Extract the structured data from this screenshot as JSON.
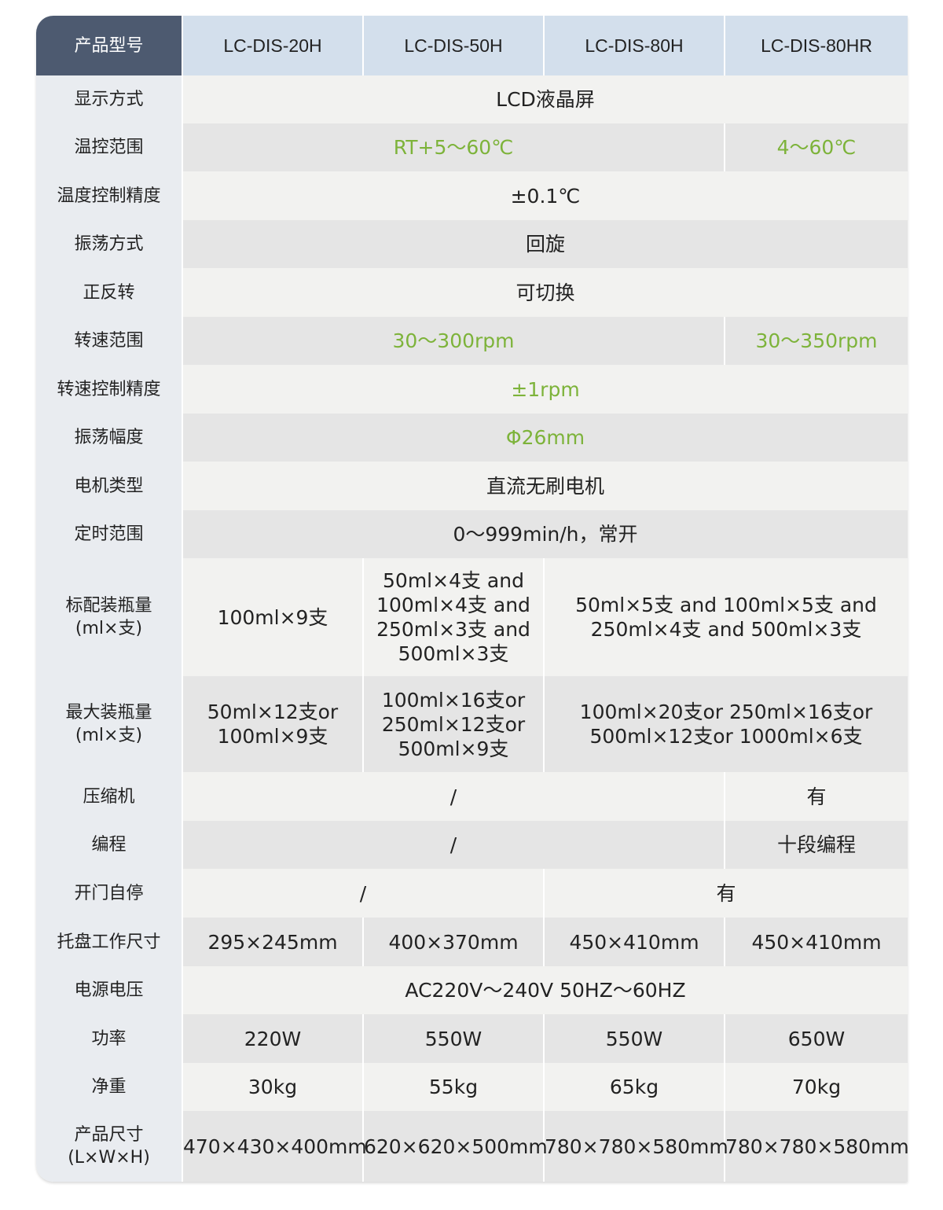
{
  "colors": {
    "header_label_bg": "#4d5a70",
    "header_bg": "#d3dfec",
    "label_bg": "#e9ecf0",
    "row_light": "#f2f2f0",
    "row_dark": "#e5e5e5",
    "highlight_green": "#7db33a"
  },
  "header": {
    "label": "产品型号",
    "models": [
      "LC-DIS-20H",
      "LC-DIS-50H",
      "LC-DIS-80H",
      "LC-DIS-80HR"
    ]
  },
  "rows": [
    {
      "label": "显示方式",
      "cells": [
        {
          "text": "LCD液晶屏",
          "span": 4
        }
      ]
    },
    {
      "label": "温控范围",
      "cells": [
        {
          "text": "RT+5～60℃",
          "span": 3,
          "green": true
        },
        {
          "text": "4～60℃",
          "span": 1,
          "green": true
        }
      ]
    },
    {
      "label": "温度控制精度",
      "cells": [
        {
          "text": "±0.1℃",
          "span": 4
        }
      ]
    },
    {
      "label": "振荡方式",
      "cells": [
        {
          "text": "回旋",
          "span": 4
        }
      ]
    },
    {
      "label": "正反转",
      "cells": [
        {
          "text": "可切换",
          "span": 4
        }
      ]
    },
    {
      "label": "转速范围",
      "cells": [
        {
          "text": "30～300rpm",
          "span": 3,
          "green": true
        },
        {
          "text": "30～350rpm",
          "span": 1,
          "green": true
        }
      ]
    },
    {
      "label": "转速控制精度",
      "cells": [
        {
          "text": "±1rpm",
          "span": 4,
          "green": true
        }
      ]
    },
    {
      "label": "振荡幅度",
      "cells": [
        {
          "text": "Φ26mm",
          "span": 4,
          "green": true
        }
      ]
    },
    {
      "label": "电机类型",
      "cells": [
        {
          "text": "直流无刷电机",
          "span": 4
        }
      ]
    },
    {
      "label": "定时范围",
      "cells": [
        {
          "text": "0～999min/h，常开",
          "span": 4
        }
      ]
    },
    {
      "label": "标配装瓶量\n(ml×支)",
      "cells": [
        {
          "text": "100ml×9支",
          "span": 1
        },
        {
          "text": "50ml×4支 and\n100ml×4支 and\n250ml×3支 and\n500ml×3支",
          "span": 1
        },
        {
          "text": "50ml×5支 and 100ml×5支 and\n250ml×4支 and 500ml×3支",
          "span": 2
        }
      ]
    },
    {
      "label": "最大装瓶量\n(ml×支)",
      "cells": [
        {
          "text": "50ml×12支or\n100ml×9支",
          "span": 1
        },
        {
          "text": "100ml×16支or\n250ml×12支or\n500ml×9支",
          "span": 1
        },
        {
          "text": "100ml×20支or  250ml×16支or\n500ml×12支or 1000ml×6支",
          "span": 2
        }
      ]
    },
    {
      "label": "压缩机",
      "cells": [
        {
          "text": "/",
          "span": 3
        },
        {
          "text": "有",
          "span": 1
        }
      ]
    },
    {
      "label": "编程",
      "cells": [
        {
          "text": "/",
          "span": 3
        },
        {
          "text": "十段编程",
          "span": 1
        }
      ]
    },
    {
      "label": "开门自停",
      "cells": [
        {
          "text": "/",
          "span": 2
        },
        {
          "text": "有",
          "span": 2
        }
      ]
    },
    {
      "label": "托盘工作尺寸",
      "cells": [
        {
          "text": "295×245mm",
          "span": 1
        },
        {
          "text": "400×370mm",
          "span": 1
        },
        {
          "text": "450×410mm",
          "span": 1
        },
        {
          "text": "450×410mm",
          "span": 1
        }
      ]
    },
    {
      "label": "电源电压",
      "cells": [
        {
          "text": "AC220V～240V   50HZ～60HZ",
          "span": 4
        }
      ]
    },
    {
      "label": "功率",
      "cells": [
        {
          "text": "220W",
          "span": 1
        },
        {
          "text": "550W",
          "span": 1
        },
        {
          "text": "550W",
          "span": 1
        },
        {
          "text": "650W",
          "span": 1
        }
      ]
    },
    {
      "label": "净重",
      "cells": [
        {
          "text": "30kg",
          "span": 1
        },
        {
          "text": "55kg",
          "span": 1
        },
        {
          "text": "65kg",
          "span": 1
        },
        {
          "text": "70kg",
          "span": 1
        }
      ]
    },
    {
      "label": "产品尺寸\n(L×W×H)",
      "cells": [
        {
          "text": "470×430×400mm",
          "span": 1
        },
        {
          "text": "620×620×500mm",
          "span": 1
        },
        {
          "text": "780×780×580mm",
          "span": 1
        },
        {
          "text": "780×780×580mm",
          "span": 1
        }
      ]
    }
  ]
}
